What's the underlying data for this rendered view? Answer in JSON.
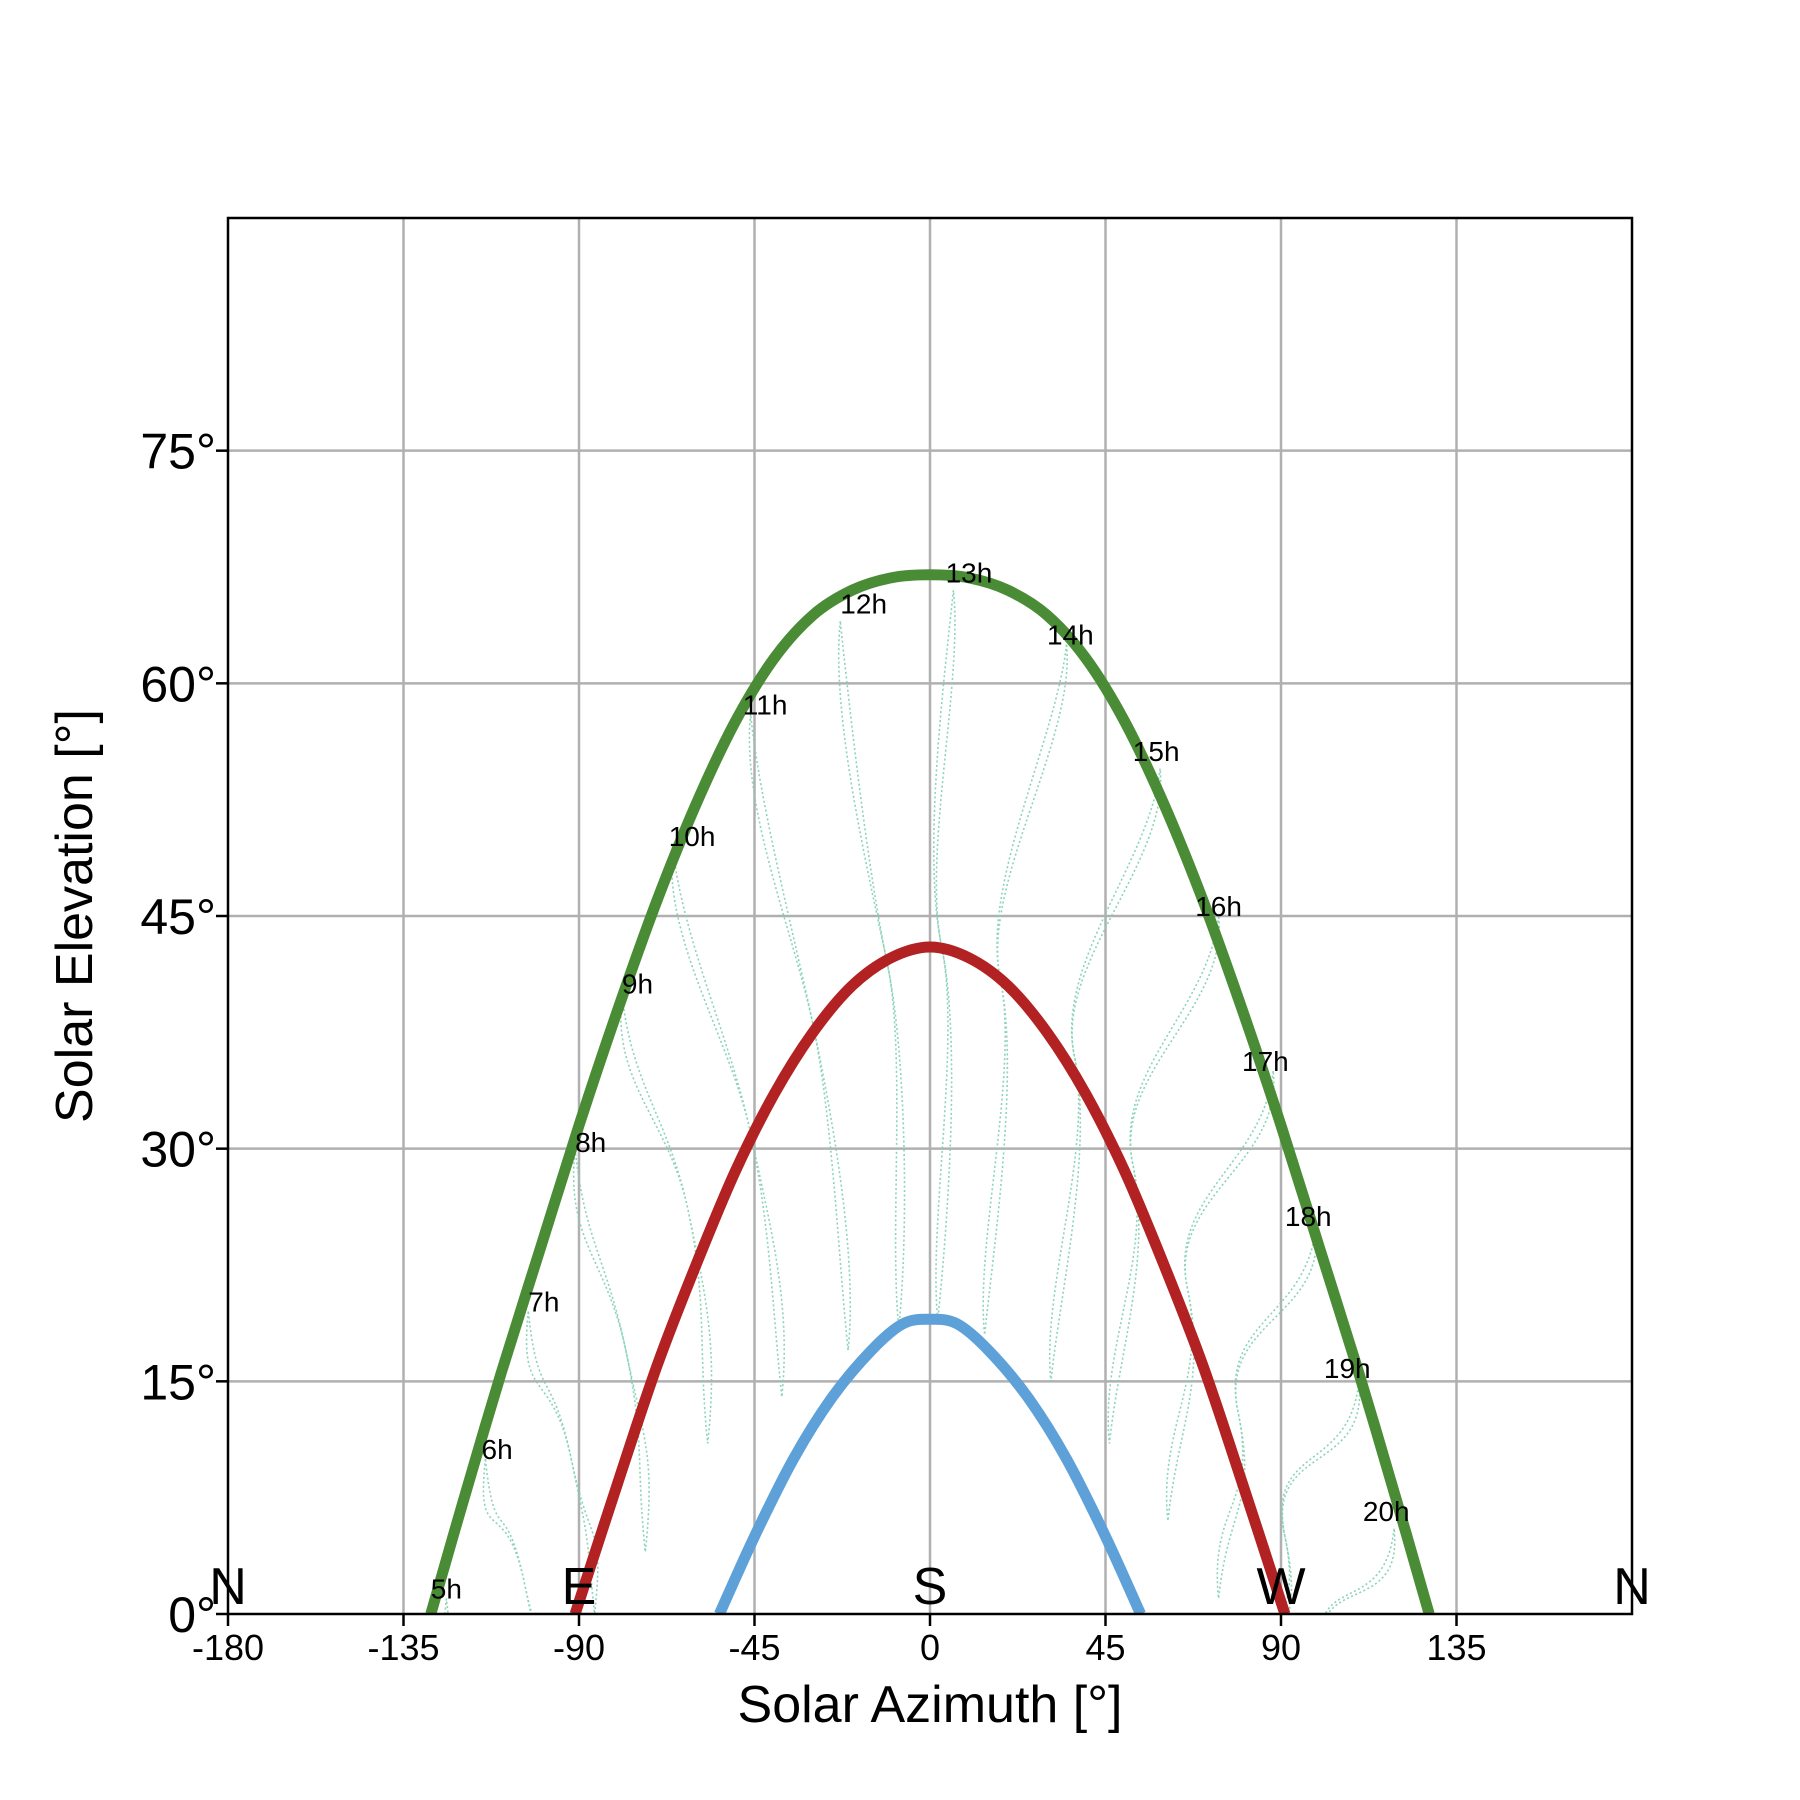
{
  "chart_data": {
    "type": "line",
    "title": "",
    "xlabel": "Solar Azimuth [°]",
    "ylabel": "Solar Elevation [°]",
    "xlim": [
      -180,
      180
    ],
    "ylim": [
      0,
      90
    ],
    "grid": true,
    "x_ticks": [
      -180,
      -135,
      -90,
      -45,
      0,
      45,
      90,
      135
    ],
    "x_tick_labels": [
      "-180",
      "-135",
      "-90",
      "-45",
      "0",
      "45",
      "90",
      "135"
    ],
    "y_ticks": [
      0,
      15,
      30,
      45,
      60,
      75
    ],
    "y_tick_labels": [
      "0°",
      "15°",
      "30°",
      "45°",
      "60°",
      "75°"
    ],
    "compass_labels": [
      {
        "text": "N",
        "x": -180
      },
      {
        "text": "E",
        "x": -90
      },
      {
        "text": "S",
        "x": 0
      },
      {
        "text": "W",
        "x": 90
      },
      {
        "text": "N",
        "x": 180
      }
    ],
    "series": [
      {
        "color": "#4a8c35",
        "points": [
          [
            -128,
            0
          ],
          [
            -120,
            7
          ],
          [
            -110,
            15.5
          ],
          [
            -100,
            23.5
          ],
          [
            -90,
            31.5
          ],
          [
            -80,
            39
          ],
          [
            -70,
            46
          ],
          [
            -60,
            52.2
          ],
          [
            -50,
            57.5
          ],
          [
            -40,
            61.6
          ],
          [
            -30,
            64.4
          ],
          [
            -20,
            66
          ],
          [
            -10,
            66.8
          ],
          [
            0,
            67
          ],
          [
            10,
            66.8
          ],
          [
            20,
            66
          ],
          [
            30,
            64.4
          ],
          [
            40,
            61.6
          ],
          [
            50,
            57.5
          ],
          [
            60,
            52.2
          ],
          [
            70,
            46
          ],
          [
            80,
            39
          ],
          [
            90,
            31.5
          ],
          [
            100,
            23.5
          ],
          [
            110,
            15.5
          ],
          [
            120,
            7
          ],
          [
            128,
            0
          ]
        ]
      },
      {
        "color": "#b22222",
        "points": [
          [
            -91,
            0
          ],
          [
            -80,
            8.5
          ],
          [
            -70,
            16
          ],
          [
            -60,
            22.5
          ],
          [
            -50,
            28.5
          ],
          [
            -40,
            33.5
          ],
          [
            -30,
            37.5
          ],
          [
            -20,
            40.5
          ],
          [
            -10,
            42.3
          ],
          [
            0,
            43
          ],
          [
            10,
            42.3
          ],
          [
            20,
            40.5
          ],
          [
            30,
            37.5
          ],
          [
            40,
            33.5
          ],
          [
            50,
            28.5
          ],
          [
            60,
            22.5
          ],
          [
            70,
            16
          ],
          [
            80,
            8.5
          ],
          [
            91,
            0
          ]
        ]
      },
      {
        "color": "#5ea1d8",
        "points": [
          [
            -54,
            0
          ],
          [
            -45,
            5
          ],
          [
            -35,
            10
          ],
          [
            -25,
            14
          ],
          [
            -15,
            17
          ],
          [
            -7,
            18.7
          ],
          [
            0,
            19
          ],
          [
            7,
            18.7
          ],
          [
            15,
            17
          ],
          [
            25,
            14
          ],
          [
            35,
            10
          ],
          [
            45,
            5
          ],
          [
            54,
            0
          ]
        ]
      }
    ],
    "hour_labels": [
      {
        "text": "5h",
        "x": -128,
        "y": 1
      },
      {
        "text": "6h",
        "x": -115,
        "y": 10
      },
      {
        "text": "7h",
        "x": -103,
        "y": 19.5
      },
      {
        "text": "8h",
        "x": -91,
        "y": 29.8
      },
      {
        "text": "9h",
        "x": -79,
        "y": 40
      },
      {
        "text": "10h",
        "x": -67,
        "y": 49.5
      },
      {
        "text": "11h",
        "x": -48,
        "y": 58
      },
      {
        "text": "12h",
        "x": -23,
        "y": 64.5
      },
      {
        "text": "13h",
        "x": 4,
        "y": 66.5
      },
      {
        "text": "14h",
        "x": 30,
        "y": 62.5
      },
      {
        "text": "15h",
        "x": 52,
        "y": 55
      },
      {
        "text": "16h",
        "x": 68,
        "y": 45
      },
      {
        "text": "17h",
        "x": 80,
        "y": 35
      },
      {
        "text": "18h",
        "x": 91,
        "y": 25
      },
      {
        "text": "19h",
        "x": 101,
        "y": 15.2
      },
      {
        "text": "20h",
        "x": 111,
        "y": 6
      }
    ],
    "analemmas": [
      {
        "hour": "5h",
        "top": [
          -124,
          1
        ],
        "mid": [
          -116,
          -6
        ],
        "bottom": [
          -112,
          -14
        ]
      },
      {
        "hour": "6h",
        "top": [
          -114,
          10
        ],
        "mid": [
          -104,
          2
        ],
        "bottom": [
          -99,
          -7
        ]
      },
      {
        "hour": "7h",
        "top": [
          -103,
          19.5
        ],
        "mid": [
          -92,
          10
        ],
        "bottom": [
          -86,
          0
        ]
      },
      {
        "hour": "8h",
        "top": [
          -91,
          30
        ],
        "mid": [
          -78,
          17
        ],
        "bottom": [
          -73,
          4
        ]
      },
      {
        "hour": "9h",
        "top": [
          -79,
          40
        ],
        "mid": [
          -62,
          26
        ],
        "bottom": [
          -57,
          11
        ]
      },
      {
        "hour": "10h",
        "top": [
          -66,
          49.5
        ],
        "mid": [
          -46,
          31
        ],
        "bottom": [
          -38,
          14
        ]
      },
      {
        "hour": "11h",
        "top": [
          -46,
          58
        ],
        "mid": [
          -30,
          38
        ],
        "bottom": [
          -21,
          17
        ]
      },
      {
        "hour": "12h",
        "top": [
          -23,
          64
        ],
        "mid": [
          -11,
          42
        ],
        "bottom": [
          -8,
          18.5
        ]
      },
      {
        "hour": "13h",
        "top": [
          6,
          66
        ],
        "mid": [
          3,
          43
        ],
        "bottom": [
          2,
          19
        ]
      },
      {
        "hour": "14h",
        "top": [
          35,
          62.5
        ],
        "mid": [
          18,
          41
        ],
        "bottom": [
          14,
          18
        ]
      },
      {
        "hour": "15h",
        "top": [
          59,
          54.5
        ],
        "mid": [
          37,
          36
        ],
        "bottom": [
          31,
          15
        ]
      },
      {
        "hour": "16h",
        "top": [
          74,
          45
        ],
        "mid": [
          52,
          29
        ],
        "bottom": [
          46,
          11
        ]
      },
      {
        "hour": "17h",
        "top": [
          88,
          35
        ],
        "mid": [
          66,
          21
        ],
        "bottom": [
          61,
          6
        ]
      },
      {
        "hour": "18h",
        "top": [
          99,
          25
        ],
        "mid": [
          79,
          13
        ],
        "bottom": [
          74,
          1
        ]
      },
      {
        "hour": "19h",
        "top": [
          110,
          15
        ],
        "mid": [
          91,
          5
        ],
        "bottom": [
          86,
          -6
        ]
      },
      {
        "hour": "20h",
        "top": [
          119,
          5.5
        ],
        "mid": [
          101,
          -3
        ],
        "bottom": [
          96,
          -12
        ]
      }
    ],
    "analemma_color": "#7fcfae"
  }
}
